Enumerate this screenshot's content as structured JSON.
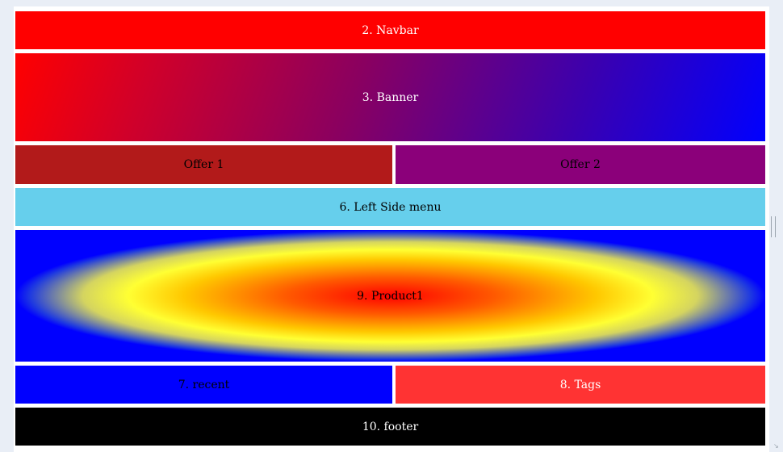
{
  "sections": {
    "navbar": "2. Navbar",
    "banner": "3. Banner",
    "offer1": "Offer 1",
    "offer2": "Offer 2",
    "left_menu": "6. Left Side menu",
    "product": "9. Product1",
    "recent": "7. recent",
    "tags": "8. Tags",
    "footer": "10. footer"
  },
  "colors": {
    "navbar": "#ff0000",
    "banner_start": "#ff0000",
    "banner_end": "#0000ff",
    "offer1": "#b21a1a",
    "offer2": "#8b007a",
    "left_menu": "#66cfec",
    "product_center": "#ff0000",
    "product_ring": "#ffff33",
    "product_edge": "#0000ff",
    "recent": "#0000ff",
    "tags": "#ff3333",
    "footer": "#000000"
  },
  "icons": {
    "scroll_handle": "drag-handle-icon",
    "resize_corner": "resize-grip-icon"
  }
}
